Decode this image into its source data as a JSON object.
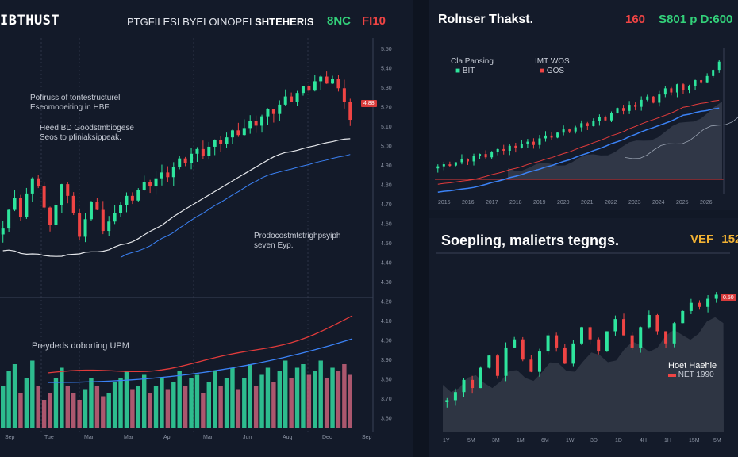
{
  "left_panel": {
    "ticker": "IBTHUST",
    "subtitle": "PTGFILESI BYELOINOPEI",
    "subtitle_bold": "SHTEHERIS",
    "tag_green": "8NC",
    "tag_red": "FI10",
    "note1": [
      "Pofiruss of tontestructurel",
      "Eseomooeiting in HBF."
    ],
    "note2": [
      "Heed BD Goodstmbiogese",
      "Seos to pfiniaksippeak."
    ],
    "note3": [
      "Prodocostmtstrighpsyiph",
      "seven Eyp."
    ],
    "note4": "Preydeds doborting UPM",
    "price_label": "4.88",
    "axis_ticks": [
      "5.50",
      "5.40",
      "5.30",
      "5.20",
      "5.10",
      "5.00",
      "4.90",
      "4.80",
      "4.70",
      "4.60",
      "4.50",
      "4.40",
      "4.30",
      "4.20",
      "4.10",
      "4.00",
      "3.90",
      "3.80",
      "3.70",
      "3.60"
    ],
    "x_ticks": [
      "Sep",
      "Tue",
      "Mar",
      "Mar",
      "Apr",
      "Mar",
      "Jun",
      "Aug",
      "Dec",
      "Sep"
    ]
  },
  "right_top": {
    "title": "Rolnser Thakst.",
    "tag_red": "160",
    "tag_green": "S801 p D:600",
    "legend": [
      {
        "label": "Cla Pansing",
        "sub": "BIT"
      },
      {
        "label": "IMT WOS",
        "sub": "GOS"
      }
    ],
    "x_ticks": [
      "2015",
      "2016",
      "2017",
      "2018",
      "2019",
      "2020",
      "2021",
      "2022",
      "2023",
      "2024",
      "2025",
      "2026"
    ]
  },
  "right_bottom": {
    "title": "Soepling, malietrs tegngs.",
    "tag": "VEF",
    "tag_value": "152",
    "note": "Hoet Haehie",
    "note_sub": "NET 1990",
    "price_label": "0.50",
    "x_ticks": [
      "1Y",
      "5M",
      "3M",
      "1M",
      "6M",
      "1W",
      "3D",
      "1D",
      "4H",
      "1H",
      "15M",
      "5M"
    ]
  },
  "colors": {
    "up": "#2ee59d",
    "down": "#ef4444",
    "bg": "#131a29",
    "line_white": "#e5e7eb",
    "line_blue": "#3b82f6",
    "line_red": "#e23b3b"
  },
  "chart_data": [
    {
      "type": "candlestick",
      "panel": "left",
      "ylim": [
        3.6,
        5.5
      ],
      "close": [
        4.02,
        4.18,
        4.28,
        4.12,
        4.32,
        4.45,
        4.38,
        4.2,
        4.05,
        4.22,
        4.4,
        4.3,
        4.15,
        3.95,
        4.1,
        4.25,
        4.18,
        4.0,
        4.08,
        4.15,
        4.22,
        4.3,
        4.26,
        4.35,
        4.42,
        4.38,
        4.45,
        4.5,
        4.46,
        4.55,
        4.62,
        4.58,
        4.66,
        4.7,
        4.64,
        4.72,
        4.78,
        4.74,
        4.8,
        4.86,
        4.82,
        4.88,
        4.94,
        4.9,
        4.98,
        5.04,
        5.0,
        5.08,
        5.15,
        5.1,
        5.18,
        5.24,
        5.2,
        5.28,
        5.32,
        5.26,
        5.3,
        5.22,
        5.1,
        4.95
      ],
      "volume": [
        0.6,
        0.8,
        0.9,
        0.5,
        0.7,
        0.95,
        0.6,
        0.4,
        0.5,
        0.7,
        0.85,
        0.6,
        0.5,
        0.4,
        0.55,
        0.7,
        0.6,
        0.45,
        0.5,
        0.65,
        0.7,
        0.8,
        0.55,
        0.6,
        0.75,
        0.5,
        0.6,
        0.7,
        0.55,
        0.65,
        0.8,
        0.6,
        0.7,
        0.75,
        0.5,
        0.65,
        0.8,
        0.6,
        0.7,
        0.85,
        0.55,
        0.7,
        0.9,
        0.6,
        0.75,
        0.85,
        0.65,
        0.8,
        0.95,
        0.7,
        0.85,
        0.9,
        0.75,
        0.8,
        0.95,
        0.7,
        0.85,
        0.8,
        0.9,
        0.75
      ]
    },
    {
      "type": "candlestick",
      "panel": "right_top",
      "close": [
        1.0,
        1.05,
        1.02,
        1.1,
        1.18,
        1.12,
        1.25,
        1.3,
        1.22,
        1.35,
        1.42,
        1.38,
        1.5,
        1.45,
        1.55,
        1.6,
        1.52,
        1.68,
        1.75,
        1.7,
        1.82,
        1.9,
        1.85,
        1.95,
        2.05,
        1.98,
        2.1,
        2.2,
        2.12,
        2.3,
        2.42,
        2.35,
        2.5,
        2.45,
        2.62,
        2.7,
        2.55,
        2.75,
        2.9,
        2.8,
        3.0,
        2.85,
        2.95,
        3.1,
        3.05,
        3.2,
        3.35,
        3.55
      ]
    },
    {
      "type": "candlestick",
      "panel": "right_bottom",
      "close": [
        1.0,
        1.2,
        1.5,
        1.3,
        1.8,
        2.1,
        1.6,
        2.3,
        2.5,
        2.0,
        1.7,
        2.2,
        2.6,
        2.3,
        1.9,
        2.4,
        2.8,
        2.5,
        2.2,
        2.7,
        3.0,
        2.6,
        2.3,
        2.8,
        3.1,
        2.7,
        2.4,
        2.9,
        3.2,
        3.4,
        3.3,
        3.5,
        3.6
      ]
    }
  ]
}
